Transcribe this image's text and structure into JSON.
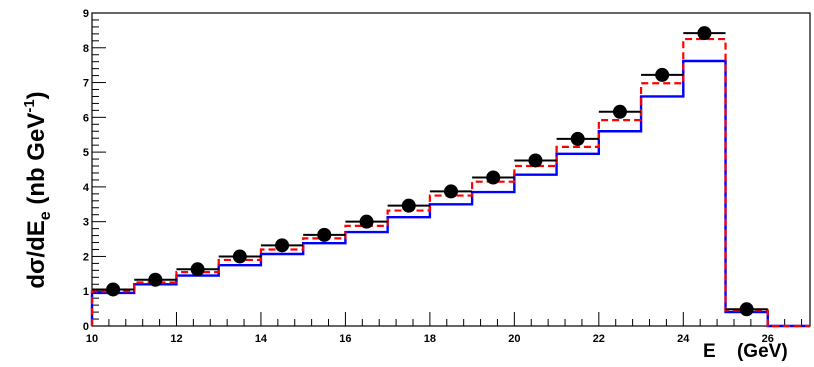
{
  "chart_data": {
    "type": "histogram",
    "xlabel": "E",
    "xlabel_unit": "(GeV)",
    "ylabel": {
      "main": "dσ/dE",
      "sub": "e",
      "unit_open": " (nb GeV",
      "unit_sup": "-1",
      "unit_close": ")"
    },
    "xlim": [
      10,
      27
    ],
    "ylim": [
      0,
      9
    ],
    "x_ticks": [
      10,
      12,
      14,
      16,
      18,
      20,
      22,
      24,
      26
    ],
    "y_ticks": [
      0,
      1,
      2,
      3,
      4,
      5,
      6,
      7,
      8,
      9
    ],
    "bin_edges": [
      10,
      11,
      12,
      13,
      14,
      15,
      16,
      17,
      18,
      19,
      20,
      21,
      22,
      23,
      24,
      25,
      26,
      27
    ],
    "series": [
      {
        "style": "data-points",
        "color": "#000000",
        "x": [
          10.5,
          11.5,
          12.5,
          13.5,
          14.5,
          15.5,
          16.5,
          17.5,
          18.5,
          19.5,
          20.5,
          21.5,
          22.5,
          23.5,
          24.5,
          25.5
        ],
        "y": [
          1.05,
          1.33,
          1.63,
          2.0,
          2.32,
          2.62,
          3.0,
          3.46,
          3.87,
          4.27,
          4.76,
          5.38,
          6.16,
          7.22,
          8.42,
          0.48
        ]
      },
      {
        "style": "dashed-histogram",
        "color": "#ff0000",
        "values": [
          1.0,
          1.25,
          1.55,
          1.9,
          2.2,
          2.52,
          2.88,
          3.32,
          3.75,
          4.15,
          4.6,
          5.15,
          5.92,
          6.98,
          8.25,
          0.45,
          0.0
        ]
      },
      {
        "style": "solid-histogram",
        "color": "#0000ff",
        "values": [
          0.95,
          1.2,
          1.45,
          1.75,
          2.07,
          2.38,
          2.7,
          3.13,
          3.5,
          3.85,
          4.35,
          4.95,
          5.6,
          6.6,
          7.62,
          0.4,
          0.0
        ]
      }
    ]
  }
}
